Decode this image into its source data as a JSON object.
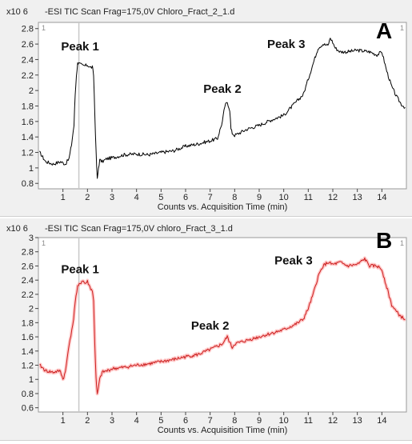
{
  "chart_data": [
    {
      "type": "line",
      "panel_label": "A",
      "title": "-ESI TIC Scan Frag=175,0V Chloro_Fract_2_1.d",
      "y_multiplier": "x10 6",
      "xlabel": "Counts vs. Acquisition Time (min)",
      "xlim": [
        0,
        15
      ],
      "ylim": [
        0.73,
        2.88
      ],
      "x_ticks": [
        1,
        2,
        3,
        4,
        5,
        6,
        7,
        8,
        9,
        10,
        11,
        12,
        13,
        14
      ],
      "y_ticks": [
        0.8,
        1,
        1.2,
        1.4,
        1.6,
        1.8,
        2,
        2.2,
        2.4,
        2.6,
        2.8
      ],
      "y_tick_labels": [
        "0.8",
        "1",
        "1.2",
        "1.4",
        "1.6",
        "1.8",
        "2",
        "2.2",
        "2.4",
        "2.6",
        "2.8"
      ],
      "corner_marker_left": "1",
      "corner_marker_right": "1",
      "marker_x": 1.65,
      "grid": false,
      "colors": {
        "line": "#000000",
        "halo": ""
      },
      "annotations": [
        {
          "text": "Peak 1",
          "x": 1.7,
          "y": 2.52
        },
        {
          "text": "Peak 2",
          "x": 7.5,
          "y": 1.97
        },
        {
          "text": "Peak 3",
          "x": 10.1,
          "y": 2.55
        }
      ],
      "series": [
        {
          "x": [
            0.05,
            0.3,
            0.6,
            0.9,
            1.1,
            1.25,
            1.35,
            1.45,
            1.5,
            1.55,
            1.6,
            1.62,
            1.7,
            1.8,
            1.9,
            2.0,
            2.1,
            2.2,
            2.25,
            2.3,
            2.35,
            2.4,
            2.45,
            2.5,
            2.6,
            2.8,
            3.0,
            3.5,
            4.0,
            4.5,
            5.0,
            5.5,
            6.0,
            6.5,
            7.0,
            7.3,
            7.5,
            7.6,
            7.7,
            7.8,
            7.85,
            7.9,
            8.0,
            8.5,
            9.0,
            9.5,
            10.0,
            10.5,
            10.8,
            11.0,
            11.2,
            11.4,
            11.6,
            11.8,
            11.9,
            12.0,
            12.1,
            12.3,
            12.6,
            13.0,
            13.5,
            13.8,
            14.0,
            14.2,
            14.4,
            14.6,
            14.8,
            14.95
          ],
          "y": [
            1.2,
            1.08,
            1.05,
            1.08,
            1.05,
            1.12,
            1.3,
            1.55,
            1.95,
            2.2,
            2.35,
            2.36,
            2.34,
            2.32,
            2.32,
            2.33,
            2.3,
            2.3,
            2.2,
            1.7,
            1.2,
            0.85,
            1.0,
            1.1,
            1.08,
            1.12,
            1.13,
            1.17,
            1.18,
            1.17,
            1.2,
            1.22,
            1.28,
            1.31,
            1.35,
            1.38,
            1.6,
            1.8,
            1.85,
            1.75,
            1.5,
            1.45,
            1.42,
            1.5,
            1.55,
            1.62,
            1.68,
            1.85,
            1.95,
            2.15,
            2.35,
            2.55,
            2.6,
            2.58,
            2.68,
            2.62,
            2.55,
            2.5,
            2.5,
            2.52,
            2.5,
            2.46,
            2.5,
            2.25,
            2.05,
            1.92,
            1.82,
            1.78
          ]
        }
      ]
    },
    {
      "type": "line",
      "panel_label": "B",
      "title": "-ESI TIC Scan Frag=175,0V chloro_Fract_3_1.d",
      "y_multiplier": "x10 6",
      "xlabel": "Counts vs. Acquisition Time (min)",
      "xlim": [
        0,
        15
      ],
      "ylim": [
        0.54,
        3.0
      ],
      "x_ticks": [
        1,
        2,
        3,
        4,
        5,
        6,
        7,
        8,
        9,
        10,
        11,
        12,
        13,
        14
      ],
      "y_ticks": [
        0.6,
        0.8,
        1,
        1.2,
        1.4,
        1.6,
        1.8,
        2,
        2.2,
        2.4,
        2.6,
        2.8,
        3
      ],
      "y_tick_labels": [
        "0.6",
        "0.8",
        "1",
        "1.2",
        "1.4",
        "1.6",
        "1.8",
        "2",
        "2.2",
        "2.4",
        "2.6",
        "2.8",
        "3"
      ],
      "corner_marker_left": "1",
      "corner_marker_right": "1",
      "marker_x": 1.65,
      "grid": false,
      "colors": {
        "line": "#cc1f1f",
        "halo": "#ff9a9a"
      },
      "annotations": [
        {
          "text": "Peak 1",
          "x": 1.7,
          "y": 2.5
        },
        {
          "text": "Peak 2",
          "x": 7.0,
          "y": 1.7
        },
        {
          "text": "Peak 3",
          "x": 10.4,
          "y": 2.62
        }
      ],
      "series": [
        {
          "x": [
            0.05,
            0.3,
            0.6,
            0.9,
            1.0,
            1.1,
            1.25,
            1.4,
            1.5,
            1.6,
            1.7,
            1.8,
            1.9,
            2.0,
            2.1,
            2.2,
            2.25,
            2.3,
            2.35,
            2.4,
            2.5,
            2.6,
            2.8,
            3.0,
            3.5,
            4.0,
            4.5,
            5.0,
            5.5,
            6.0,
            6.5,
            7.0,
            7.5,
            7.7,
            7.8,
            7.9,
            8.0,
            8.5,
            9.0,
            9.5,
            10.0,
            10.5,
            10.8,
            11.0,
            11.2,
            11.4,
            11.6,
            11.8,
            12.0,
            12.3,
            12.6,
            13.0,
            13.3,
            13.5,
            13.8,
            14.0,
            14.2,
            14.4,
            14.6,
            14.8,
            14.95
          ],
          "y": [
            1.2,
            1.12,
            1.1,
            1.12,
            1.0,
            1.1,
            1.5,
            1.75,
            2.1,
            2.3,
            2.35,
            2.4,
            2.35,
            2.38,
            2.3,
            2.25,
            2.1,
            1.5,
            1.0,
            0.78,
            1.0,
            1.1,
            1.12,
            1.15,
            1.17,
            1.2,
            1.22,
            1.25,
            1.28,
            1.32,
            1.35,
            1.42,
            1.5,
            1.6,
            1.52,
            1.45,
            1.5,
            1.55,
            1.6,
            1.65,
            1.7,
            1.78,
            1.85,
            2.0,
            2.2,
            2.45,
            2.6,
            2.65,
            2.62,
            2.65,
            2.6,
            2.62,
            2.7,
            2.6,
            2.6,
            2.55,
            2.3,
            2.05,
            1.95,
            1.88,
            1.85
          ]
        }
      ]
    }
  ]
}
